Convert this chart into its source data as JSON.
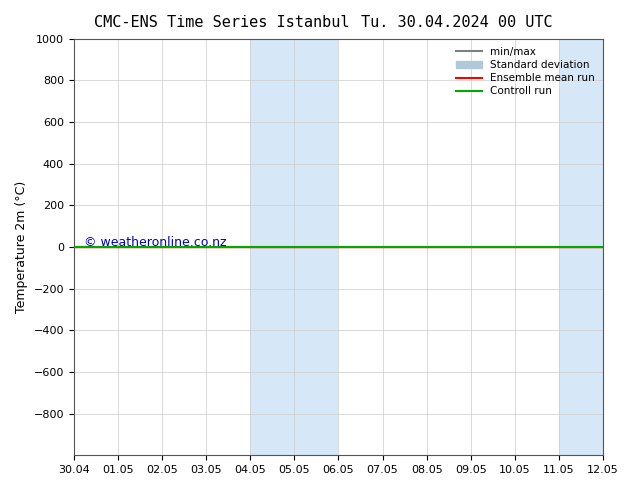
{
  "title": "CMC-ENS Time Series Istanbul",
  "title2": "Tu. 30.04.2024 00 UTC",
  "ylabel": "Temperature 2m (°C)",
  "ylim": [
    -1000,
    1000
  ],
  "yticks": [
    -800,
    -600,
    -400,
    -200,
    0,
    200,
    400,
    600,
    800,
    1000
  ],
  "xtick_labels": [
    "30.04",
    "01.05",
    "02.05",
    "03.05",
    "04.05",
    "05.05",
    "06.05",
    "07.05",
    "08.05",
    "09.05",
    "10.05",
    "11.05",
    "12.05"
  ],
  "shaded_regions": [
    {
      "xstart": 4.0,
      "xend": 6.0,
      "color": "#d6e8f7"
    },
    {
      "xstart": 11.0,
      "xend": 12.0,
      "color": "#d6e8f7"
    }
  ],
  "minmax_color": "#808080",
  "stddev_color": "#b0c8d8",
  "ensemble_mean_color": "#ff0000",
  "control_run_color": "#00aa00",
  "watermark_text": "© weatheronline.co.nz",
  "watermark_color": "#0000cc",
  "background_color": "#ffffff",
  "legend_labels": [
    "min/max",
    "Standard deviation",
    "Ensemble mean run",
    "Controll run"
  ],
  "grid_color": "#cccccc"
}
